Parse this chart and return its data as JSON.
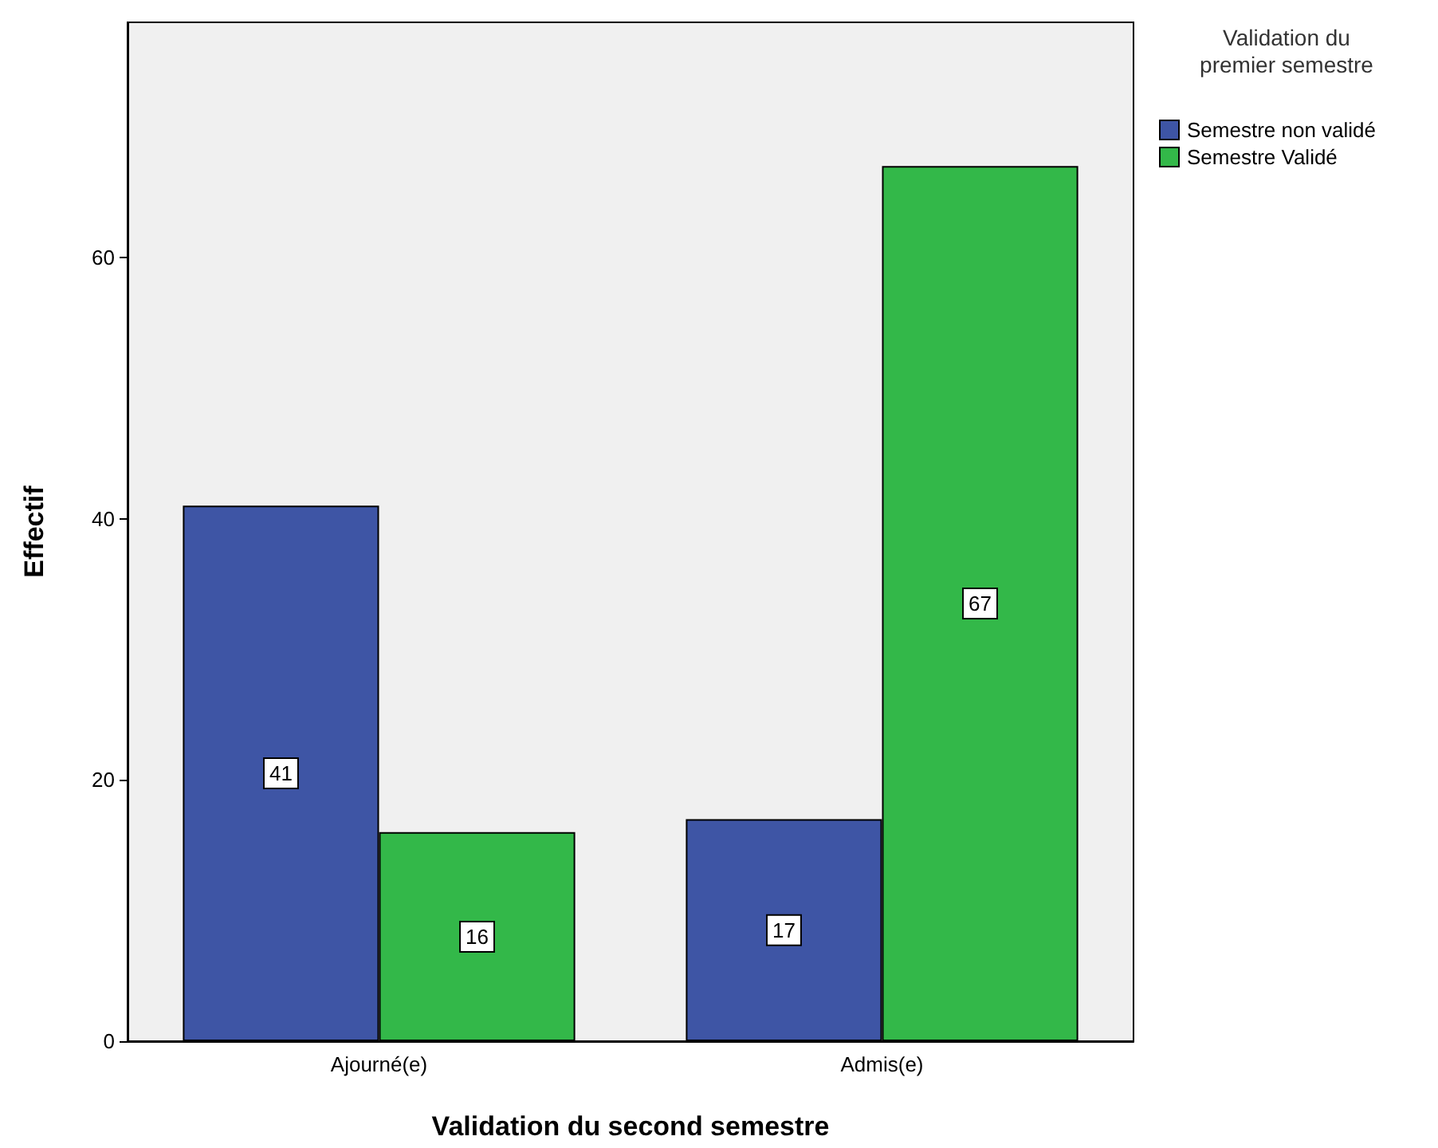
{
  "chart_data": {
    "type": "bar",
    "xlabel": "Validation du second semestre",
    "ylabel": "Effectif",
    "legend_title": "Validation du\npremier semestre",
    "categories": [
      "Ajourné(e)",
      "Admis(e)"
    ],
    "series": [
      {
        "name": "Semestre non validé",
        "color": "#3e55a5",
        "values": [
          41,
          17
        ]
      },
      {
        "name": "Semestre Validé",
        "color": "#33b849",
        "values": [
          16,
          67
        ]
      }
    ],
    "ylim": [
      0,
      78
    ],
    "yticks": [
      0,
      20,
      40,
      60
    ],
    "grid": false,
    "legend": "top right",
    "data_labels": true
  }
}
